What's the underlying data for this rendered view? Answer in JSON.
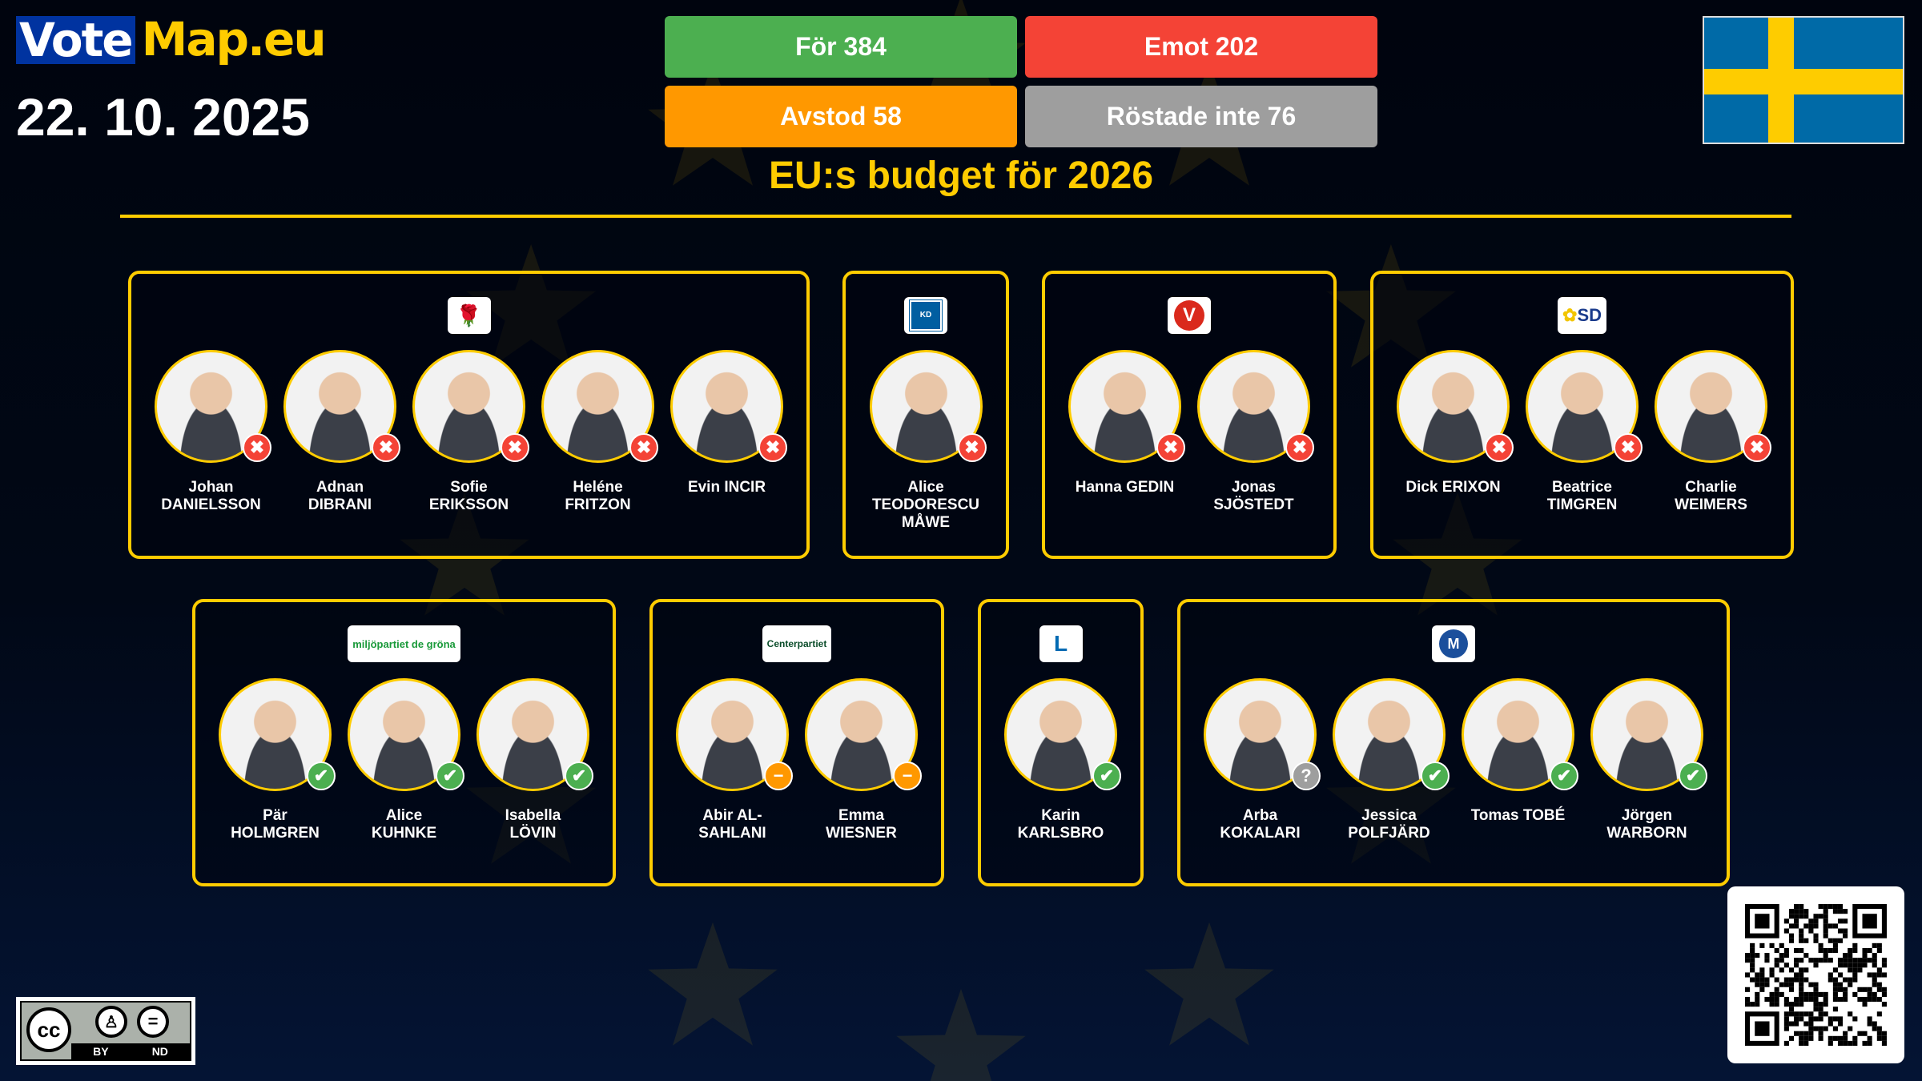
{
  "brand": {
    "vote": "Vote",
    "map": "Map.eu"
  },
  "date": "22. 10. 2025",
  "tally": {
    "for": "För 384",
    "against": "Emot 202",
    "abstain": "Avstod 58",
    "absent": "Röstade inte 76"
  },
  "colors": {
    "for": "#4caf50",
    "against": "#f44336",
    "abstain": "#ff9800",
    "absent": "#9e9e9e",
    "accent": "#ffcc00"
  },
  "title": "EU:s budget för 2026",
  "country_flag": "sweden-flag",
  "parties": [
    {
      "logo": "S",
      "logo_text": "Socialdemokraterna",
      "members": [
        {
          "name": "Johan\nDANIELSSON",
          "vote": "against"
        },
        {
          "name": "Adnan\nDIBRANI",
          "vote": "against"
        },
        {
          "name": "Sofie\nERIKSSON",
          "vote": "against"
        },
        {
          "name": "Heléne\nFRITZON",
          "vote": "against"
        },
        {
          "name": "Evin INCIR",
          "vote": "against"
        }
      ]
    },
    {
      "logo": "KD",
      "logo_text": "KD",
      "members": [
        {
          "name": "Alice\nTEODORESCU\nMÅWE",
          "vote": "against"
        }
      ]
    },
    {
      "logo": "V",
      "logo_text": "V",
      "members": [
        {
          "name": "Hanna GEDIN",
          "vote": "against"
        },
        {
          "name": "Jonas\nSJÖSTEDT",
          "vote": "against"
        }
      ]
    },
    {
      "logo": "SD",
      "logo_text": "SD",
      "members": [
        {
          "name": "Dick ERIXON",
          "vote": "against"
        },
        {
          "name": "Beatrice\nTIMGREN",
          "vote": "against"
        },
        {
          "name": "Charlie\nWEIMERS",
          "vote": "against"
        }
      ]
    },
    {
      "logo": "MP",
      "logo_text": "miljöpartiet de gröna",
      "members": [
        {
          "name": "Pär\nHOLMGREN",
          "vote": "for"
        },
        {
          "name": "Alice\nKUHNKE",
          "vote": "for"
        },
        {
          "name": "Isabella\nLÖVIN",
          "vote": "for"
        }
      ]
    },
    {
      "logo": "C",
      "logo_text": "Centerpartiet",
      "members": [
        {
          "name": "Abir AL-\nSAHLANI",
          "vote": "abstain"
        },
        {
          "name": "Emma\nWIESNER",
          "vote": "abstain"
        }
      ]
    },
    {
      "logo": "L",
      "logo_text": "L",
      "members": [
        {
          "name": "Karin\nKARLSBRO",
          "vote": "for"
        }
      ]
    },
    {
      "logo": "M",
      "logo_text": "M",
      "members": [
        {
          "name": "Arba\nKOKALARI",
          "vote": "absent"
        },
        {
          "name": "Jessica\nPOLFJÄRD",
          "vote": "for"
        },
        {
          "name": "Tomas TOBÉ",
          "vote": "for"
        },
        {
          "name": "Jörgen\nWARBORN",
          "vote": "for"
        }
      ]
    }
  ],
  "license": {
    "by": "BY",
    "nd": "ND",
    "cc": "cc"
  }
}
